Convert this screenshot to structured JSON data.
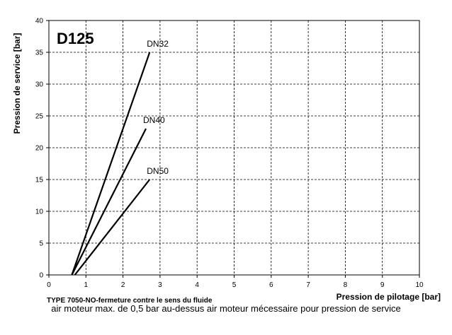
{
  "chart_data": {
    "type": "line",
    "title": "D125",
    "ylabel": "Pression de service [bar]",
    "xlabel": "Pression de pilotage [bar]",
    "subtitle": "TYPE 7050-NO-fermeture  contre le sens du fluide",
    "xlim": [
      0,
      10
    ],
    "ylim": [
      0,
      40
    ],
    "xticks": [
      0,
      1,
      2,
      3,
      4,
      5,
      6,
      7,
      8,
      9,
      10
    ],
    "yticks": [
      0,
      5,
      10,
      15,
      20,
      25,
      30,
      35,
      40
    ],
    "grid": true,
    "series": [
      {
        "name": "DN32",
        "x": [
          0.62,
          2.72
        ],
        "y": [
          0,
          35
        ]
      },
      {
        "name": "DN40",
        "x": [
          0.62,
          2.62
        ],
        "y": [
          0,
          23
        ]
      },
      {
        "name": "DN50",
        "x": [
          0.7,
          2.72
        ],
        "y": [
          0,
          15
        ]
      }
    ]
  },
  "caption": "air moteur max. de 0,5 bar au-dessus air moteur mécessaire pour pression de service",
  "colors": {
    "line": "#000000",
    "grid": "#000000",
    "background": "#ffffff"
  }
}
